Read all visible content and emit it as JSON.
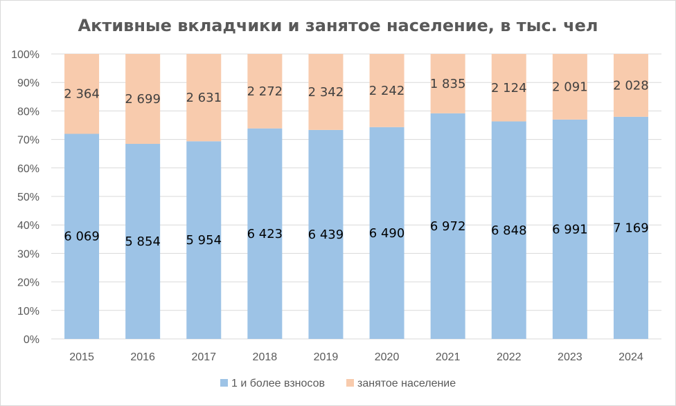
{
  "chart_data": {
    "type": "bar",
    "stacked": "percent",
    "title": "Активные вкладчики и занятое население, в тыс. чел",
    "categories": [
      "2015",
      "2016",
      "2017",
      "2018",
      "2019",
      "2020",
      "2021",
      "2022",
      "2023",
      "2024"
    ],
    "series": [
      {
        "name": "1 и более взносов",
        "values": [
          6069,
          5854,
          5954,
          6423,
          6439,
          6490,
          6972,
          6848,
          6991,
          7169
        ],
        "labels": [
          "6 069",
          "5 854",
          "5 954",
          "6 423",
          "6 439",
          "6 490",
          "6 972",
          "6 848",
          "6 991",
          "7 169"
        ],
        "color": "#9dc3e6"
      },
      {
        "name": "занятое население",
        "values": [
          2364,
          2699,
          2631,
          2272,
          2342,
          2242,
          1835,
          2124,
          2091,
          2028
        ],
        "labels": [
          "2 364",
          "2 699",
          "2 631",
          "2 272",
          "2 342",
          "2 242",
          "1 835",
          "2 124",
          "2 091",
          "2 028"
        ],
        "color": "#f8cbad"
      }
    ],
    "y_ticks": [
      "0%",
      "10%",
      "20%",
      "30%",
      "40%",
      "50%",
      "60%",
      "70%",
      "80%",
      "90%",
      "100%"
    ],
    "ylim": [
      0,
      100
    ],
    "grid": true,
    "gridline_color": "#d9d9d9",
    "legend_placement": "bottom"
  }
}
